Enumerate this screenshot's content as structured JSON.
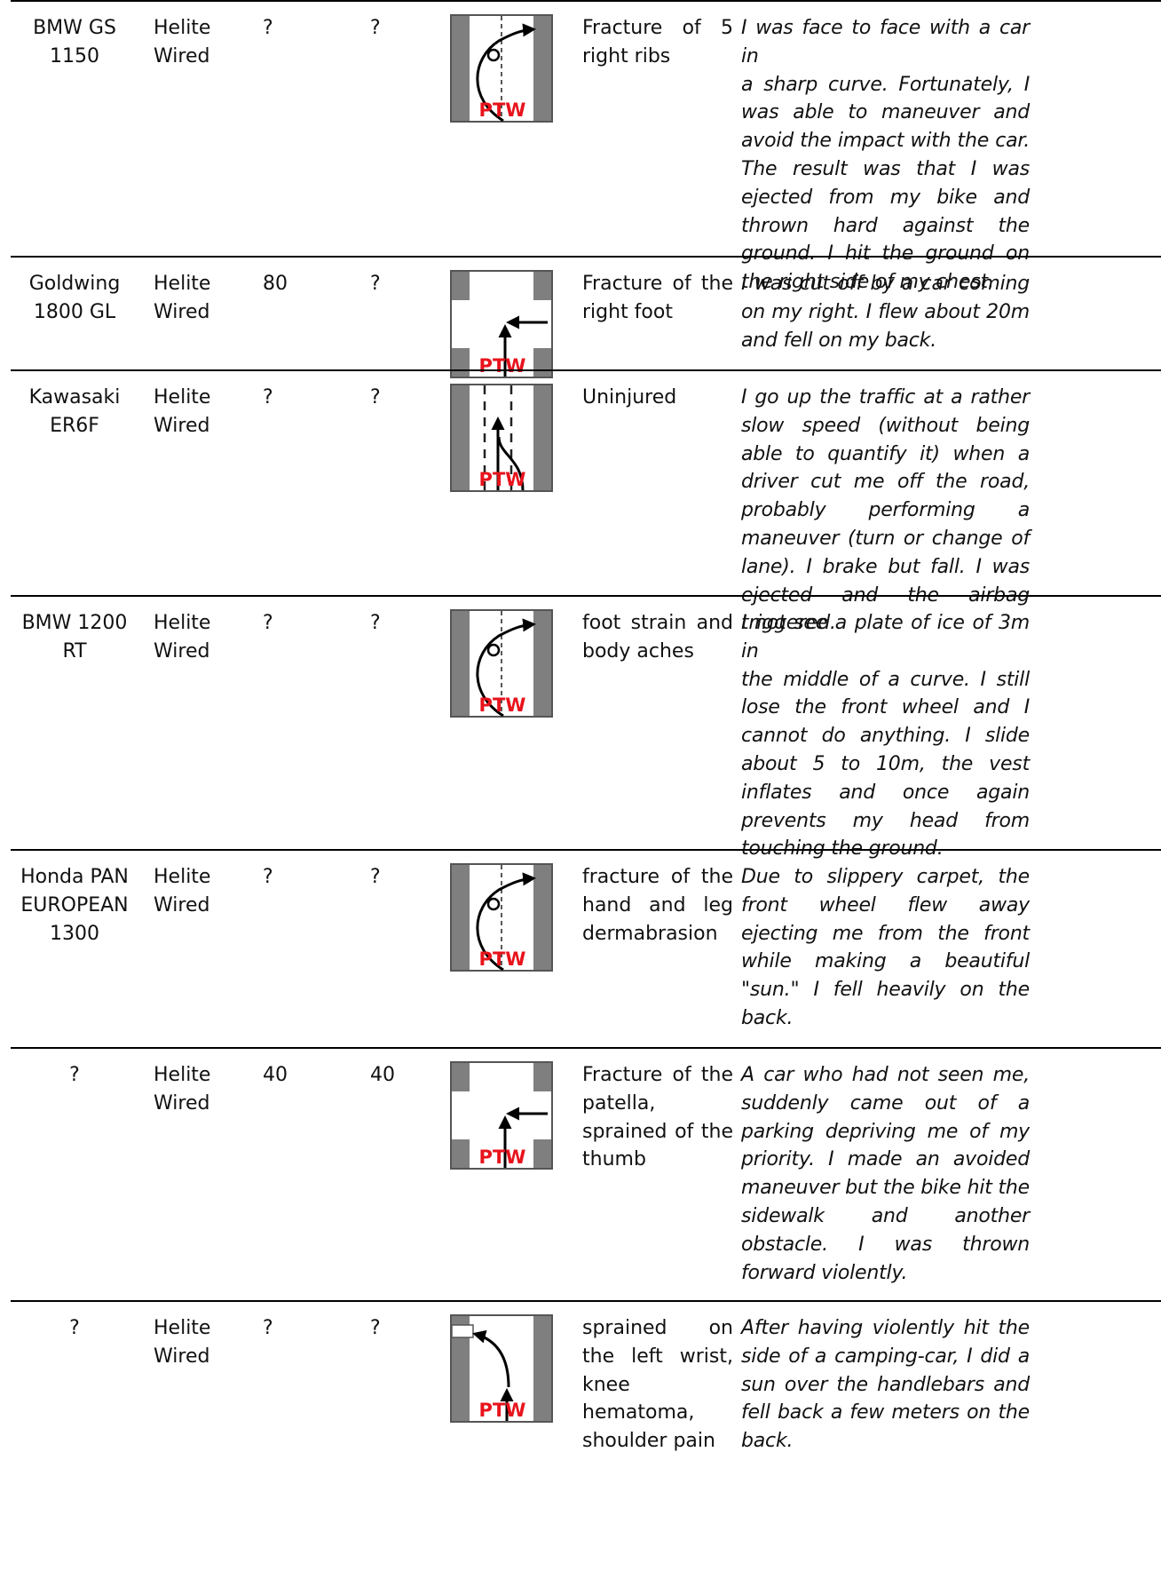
{
  "colors": {
    "pavement": "#7f7f7f",
    "ptw_label": "#e8131c",
    "rule": "#000000"
  },
  "rows": [
    {
      "model": [
        "BMW GS",
        "1150"
      ],
      "airbag": [
        "Helite",
        "Wired"
      ],
      "speed": "?",
      "speed2": "?",
      "diagram": "curve-ptw-left",
      "ptw_label": "PTW",
      "injury": [
        "Fracture  of  5",
        "right ribs"
      ],
      "story": [
        "I was face to face with a car in",
        "a sharp curve. Fortunately, I",
        "was able to maneuver and",
        "avoid the impact with the car.",
        "The result was that I was",
        "ejected from my bike and",
        "thrown hard against the",
        "ground. I hit the ground on",
        "the right side of my chest."
      ]
    },
    {
      "model": [
        "Goldwing",
        "1800 GL"
      ],
      "airbag": [
        "Helite",
        "Wired"
      ],
      "speed": "80",
      "speed2": "?",
      "diagram": "intersection-car-right",
      "ptw_label": "PTW",
      "injury": [
        "Fracture of the",
        "right foot"
      ],
      "story": [
        "I was cut off by a car coming",
        "on my right. I flew about 20m",
        "and fell on my back."
      ]
    },
    {
      "model": [
        "Kawasaki",
        "ER6F"
      ],
      "airbag": [
        "Helite",
        "Wired"
      ],
      "speed": "?",
      "speed2": "?",
      "diagram": "lane-change",
      "ptw_label": "PTW",
      "injury": [
        "Uninjured"
      ],
      "story": [
        "I go up the traffic at a rather",
        "slow speed (without being",
        "able to quantify it) when a",
        "driver cut me off the road,",
        "probably performing a",
        "maneuver (turn or change of",
        "lane). I brake but fall. I was",
        "ejected and the airbag",
        "triggered."
      ]
    },
    {
      "model": [
        "BMW 1200",
        "RT"
      ],
      "airbag": [
        "Helite",
        "Wired"
      ],
      "speed": "?",
      "speed2": "?",
      "diagram": "curve-ptw-left",
      "ptw_label": "PTW",
      "injury": [
        "foot strain and",
        "body aches"
      ],
      "story": [
        "I not see a plate of ice of 3m in",
        "the middle of a curve. I still",
        "lose the front wheel and I",
        "cannot do anything. I slide",
        "about 5 to 10m, the vest",
        "inflates and once again",
        "prevents my head from",
        "touching the ground."
      ]
    },
    {
      "model": [
        "Honda PAN",
        "EUROPEAN",
        "1300"
      ],
      "airbag": [
        "Helite",
        "Wired"
      ],
      "speed": "?",
      "speed2": "?",
      "diagram": "curve-ptw-left",
      "ptw_label": "PTW",
      "injury": [
        "fracture of the",
        "hand and leg",
        "dermabrasion"
      ],
      "story": [
        "Due to slippery carpet, the",
        "front wheel flew away",
        "ejecting me from the front",
        "while making a beautiful",
        "\"sun.\" I fell heavily on the",
        "back."
      ]
    },
    {
      "model": [
        "?"
      ],
      "airbag": [
        "Helite",
        "Wired"
      ],
      "speed": "40",
      "speed2": "40",
      "diagram": "intersection-car-right",
      "ptw_label": "PTW",
      "injury": [
        "Fracture of the",
        "patella,",
        "sprained of the",
        "thumb"
      ],
      "story": [
        "A car who had not seen me,",
        "suddenly came out of a",
        "parking depriving me of my",
        "priority. I made an avoided",
        "maneuver but the bike hit the",
        "sidewalk and another",
        "obstacle. I was thrown",
        "forward violently."
      ]
    },
    {
      "model": [
        "?"
      ],
      "airbag": [
        "Helite",
        "Wired"
      ],
      "speed": "?",
      "speed2": "?",
      "diagram": "turn-left-side",
      "ptw_label": "PTW",
      "injury": [
        "sprained on",
        "the left wrist,",
        "knee",
        "hematoma,",
        "shoulder pain"
      ],
      "story": [
        "After having violently hit the",
        "side of a camping-car, I did a",
        "sun over the handlebars and",
        "fell back a few meters on the",
        "back."
      ]
    }
  ]
}
